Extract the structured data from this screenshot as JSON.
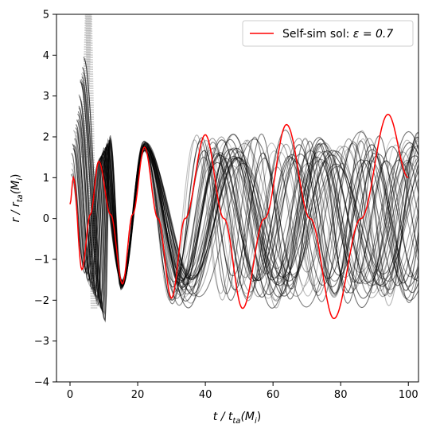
{
  "chart_data": {
    "type": "line",
    "title": "",
    "xlabel": "t / t_ta(M_i)",
    "ylabel": "r / r_ta(M_i)",
    "xlim": [
      -4,
      103
    ],
    "ylim": [
      -4,
      5
    ],
    "x_ticks": [
      0,
      20,
      40,
      60,
      80,
      100
    ],
    "y_ticks": [
      -4,
      -3,
      -2,
      -1,
      0,
      1,
      2,
      3,
      4,
      5
    ],
    "x_tick_labels": [
      "0",
      "20",
      "40",
      "60",
      "80",
      "100"
    ],
    "y_tick_labels": [
      "−4",
      "−3",
      "−2",
      "−1",
      "0",
      "1",
      "2",
      "3",
      "4",
      "5"
    ],
    "xlabel_parts": [
      "t / t",
      "ta",
      "(M",
      "i",
      ")"
    ],
    "ylabel_parts": [
      "r / r",
      "ta",
      "(M",
      "i",
      ")"
    ],
    "grid": false,
    "legend_position": "top-right",
    "legend_label_prefix": "Self-sim sol: ",
    "legend_label_value": "ε = 0.7",
    "series": [
      {
        "name": "Self-sim sol: ε = 0.7",
        "color": "#ff0000",
        "x": [
          0,
          1,
          3.5,
          6,
          8.5,
          12,
          15.5,
          18.5,
          22,
          26,
          30,
          34,
          40,
          45.5,
          51,
          57.5,
          64,
          71,
          78,
          86,
          94,
          100
        ],
        "y": [
          0.35,
          1.0,
          -1.25,
          0.1,
          1.4,
          0.1,
          -1.6,
          0.1,
          1.75,
          0.0,
          -1.95,
          0.0,
          2.05,
          0.0,
          -2.2,
          0.0,
          2.3,
          0.0,
          -2.45,
          0.0,
          2.55,
          1.0
        ]
      },
      {
        "name": "",
        "color": "#000000",
        "style": "ensemble of semi-transparent particle trajectories",
        "count": 40,
        "early_peaks": [
          [
            8.5,
            1.4
          ],
          [
            12,
            2.0
          ],
          [
            22,
            1.85
          ],
          [
            40,
            1.9
          ]
        ],
        "early_troughs": [
          [
            4,
            -1.2
          ],
          [
            10.5,
            -2.45
          ],
          [
            15.5,
            -1.6
          ],
          [
            30,
            -1.95
          ]
        ],
        "late_amplitude_range": [
          1.3,
          2.1
        ]
      }
    ]
  }
}
